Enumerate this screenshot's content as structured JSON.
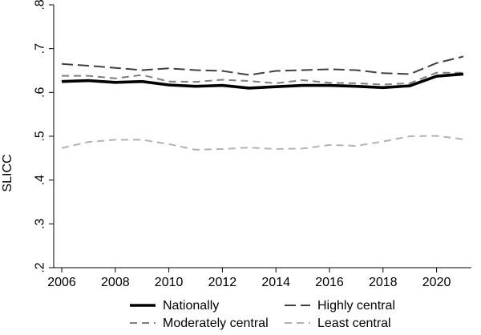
{
  "chart_data": {
    "type": "line",
    "title": "",
    "xlabel": "",
    "ylabel": "SLICC",
    "xlim": [
      2005.7,
      2021.3
    ],
    "ylim": [
      0.2,
      0.8
    ],
    "x_ticks": [
      2006,
      2008,
      2010,
      2012,
      2014,
      2016,
      2018,
      2020
    ],
    "x_tick_labels": [
      "2006",
      "2008",
      "2010",
      "2012",
      "2014",
      "2016",
      "2018",
      "2020"
    ],
    "y_ticks": [
      0.2,
      0.3,
      0.4,
      0.5,
      0.6,
      0.7,
      0.8
    ],
    "y_tick_labels": [
      ".2",
      ".3",
      ".4",
      ".5",
      ".6",
      ".7",
      ".8"
    ],
    "grid": false,
    "legend_position": "bottom",
    "x": [
      2006,
      2007,
      2008,
      2009,
      2010,
      2011,
      2012,
      2013,
      2014,
      2015,
      2016,
      2017,
      2018,
      2019,
      2020,
      2021
    ],
    "series": [
      {
        "name": "Nationally",
        "color": "#000000",
        "style": "solid-thick",
        "values": [
          0.625,
          0.627,
          0.623,
          0.625,
          0.617,
          0.614,
          0.616,
          0.61,
          0.613,
          0.616,
          0.616,
          0.614,
          0.611,
          0.615,
          0.637,
          0.642
        ]
      },
      {
        "name": "Highly central",
        "color": "#404040",
        "style": "long-dash",
        "values": [
          0.665,
          0.661,
          0.656,
          0.651,
          0.655,
          0.651,
          0.649,
          0.64,
          0.649,
          0.651,
          0.653,
          0.651,
          0.644,
          0.642,
          0.667,
          0.682
        ]
      },
      {
        "name": "Moderately central",
        "color": "#7f7f7f",
        "style": "dash",
        "values": [
          0.638,
          0.638,
          0.632,
          0.64,
          0.625,
          0.624,
          0.629,
          0.626,
          0.621,
          0.628,
          0.622,
          0.621,
          0.618,
          0.621,
          0.645,
          0.645
        ]
      },
      {
        "name": "Least central",
        "color": "#b2b2b2",
        "style": "dash",
        "values": [
          0.473,
          0.487,
          0.492,
          0.492,
          0.482,
          0.469,
          0.471,
          0.474,
          0.471,
          0.472,
          0.48,
          0.478,
          0.488,
          0.5,
          0.501,
          0.493
        ]
      }
    ]
  }
}
